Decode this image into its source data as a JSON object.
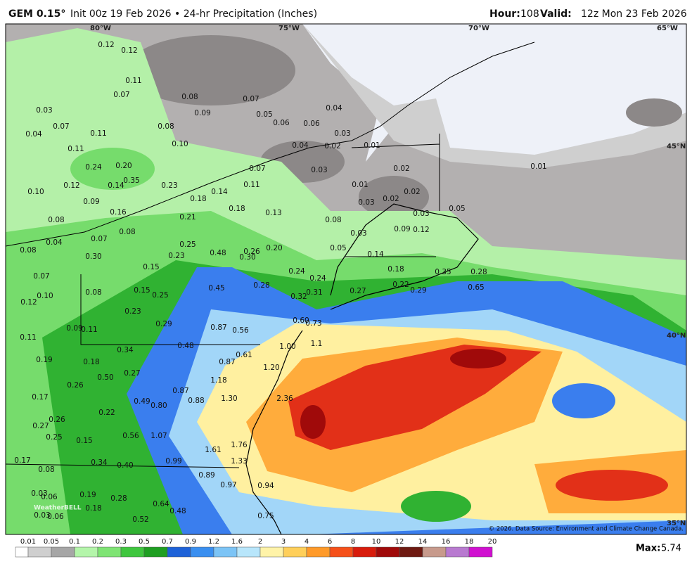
{
  "header": {
    "model": "GEM 0.15°",
    "run": "Init 00z 19 Feb 2026 • 24-hr Precipitation (Inches)",
    "hour_label": "Hour:",
    "hour": "108",
    "valid_label": "Valid:",
    "valid": "12z Mon 23 Feb 2026"
  },
  "map": {
    "longitudes": [
      "80°W",
      "75°W",
      "70°W",
      "65°W"
    ],
    "latitudes": [
      "45°N",
      "40°N",
      "35°N"
    ],
    "labels": [
      "0.12",
      "0.12",
      "0.11",
      "0.07",
      "0.08",
      "0.07",
      "0.04",
      "0.03",
      "0.07",
      "0.09",
      "0.05",
      "0.06",
      "0.06",
      "0.03",
      "0.08",
      "0.04",
      "0.11",
      "0.11",
      "0.10",
      "0.04",
      "0.02",
      "0.01",
      "0.24",
      "0.20",
      "0.07",
      "0.03",
      "0.02",
      "0.12",
      "0.14",
      "0.35",
      "0.23",
      "0.11",
      "0.01",
      "0.01",
      "0.10",
      "0.14",
      "0.02",
      "0.09",
      "0.18",
      "0.03",
      "0.02",
      "0.16",
      "0.18",
      "0.13",
      "0.03",
      "0.05",
      "0.08",
      "0.21",
      "0.08",
      "0.08",
      "0.09",
      "0.12",
      "0.03",
      "0.04",
      "0.07",
      "0.25",
      "0.08",
      "0.30",
      "0.23",
      "0.48",
      "0.26",
      "0.20",
      "0.30",
      "0.05",
      "0.14",
      "0.15",
      "0.24",
      "0.18",
      "0.35",
      "0.28",
      "0.07",
      "0.24",
      "0.08",
      "0.15",
      "0.25",
      "0.45",
      "0.28",
      "0.10",
      "0.31",
      "0.27",
      "0.22",
      "0.29",
      "0.65",
      "0.32",
      "0.12",
      "0.23",
      "0.60",
      "0.73",
      "0.29",
      "0.87",
      "0.56",
      "0.09",
      "0.11",
      "0.11",
      "1.00",
      "1.1",
      "0.48",
      "0.34",
      "0.61",
      "0.18",
      "0.87",
      "1.20",
      "0.27",
      "0.19",
      "0.50",
      "0.26",
      "1.18",
      "0.87",
      "0.17",
      "0.49",
      "0.80",
      "0.88",
      "1.30",
      "2.36",
      "0.22",
      "0.26",
      "0.27",
      "0.25",
      "0.15",
      "0.56",
      "1.07",
      "1.61",
      "1.76",
      "0.17",
      "0.08",
      "0.34",
      "0.40",
      "0.99",
      "1.33",
      "0.89",
      "0.97",
      "0.94",
      "0.03",
      "0.06",
      "0.19",
      "0.28",
      "0.64",
      "0.18",
      "0.48",
      "0.03",
      "0.06",
      "0.52",
      "0.75"
    ],
    "logo": "WeatherBELL",
    "credit": "© 2026. Data Source: Environment and Climate Change Canada."
  },
  "colorbar": {
    "levels": [
      0.01,
      0.05,
      0.1,
      0.2,
      0.3,
      0.5,
      0.7,
      0.9,
      1.2,
      1.6,
      2,
      3,
      4,
      6,
      8,
      10,
      12,
      14,
      16,
      18,
      20
    ],
    "colors": [
      "#ffffff",
      "#cfcfcf",
      "#a6a6a6",
      "#b4f5aa",
      "#7fe474",
      "#3fc63e",
      "#1f9f22",
      "#1e62d8",
      "#3a8ff0",
      "#7cc4f6",
      "#b8e6fb",
      "#fff3a8",
      "#ffcf5a",
      "#ff9a2a",
      "#f5501a",
      "#d81c0c",
      "#a00a0a",
      "#6e1a12",
      "#c79a8c",
      "#b87ad0",
      "#d010d0"
    ]
  },
  "max_label": "Max:",
  "max": 5.74
}
